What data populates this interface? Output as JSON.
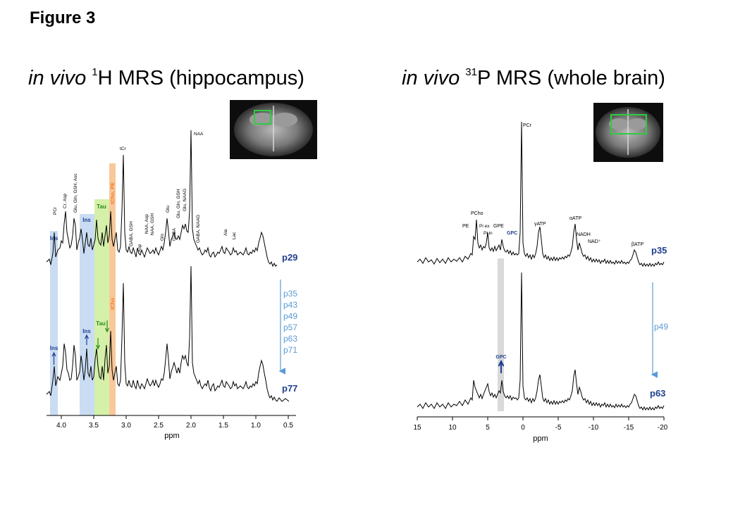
{
  "figure_label": "Figure 3",
  "left_panel": {
    "title_italic": "in vivo",
    "title_sup": "1",
    "title_rest": "H MRS (hippocampus)",
    "xlabel": "ppm",
    "xticks": [
      "4.0",
      "3.5",
      "3.0",
      "2.5",
      "2.0",
      "1.5",
      "1.0",
      "0.5"
    ],
    "peaks": [
      "PCr",
      "Cr, Asp",
      "Glu, Gln, GSH, Asc",
      "tCr",
      "NAA",
      "Glu",
      "Glu, Gln, GSH",
      "Glu, NAAG",
      "GABA, NAAG",
      "GABA, GSH",
      "Asp",
      "NAA, Asp",
      "NAA, GSH",
      "Gln",
      "GABA",
      "Ala",
      "Lac"
    ],
    "band_labels": {
      "ins": "Ins",
      "tau": "Tau",
      "tcho_pe": "tCho, PE",
      "tcho": "tCho"
    },
    "top_spectrum_label": "p29",
    "bottom_spectrum_label": "p77",
    "time_points": [
      "p35",
      "p43",
      "p49",
      "p57",
      "p63",
      "p71"
    ]
  },
  "right_panel": {
    "title_italic": "in vivo",
    "title_sup": "31",
    "title_rest": "P MRS (whole brain)",
    "xlabel": "ppm",
    "xticks": [
      "15",
      "10",
      "5",
      "0",
      "-5",
      "-10",
      "-15",
      "-20"
    ],
    "peaks": [
      "PCr",
      "PE",
      "PCho",
      "Pi ex",
      "Pi in",
      "GPE",
      "GPC",
      "γATP",
      "αATP",
      "NADH",
      "NAD⁺",
      "βATP"
    ],
    "gpc_label": "GPC",
    "top_spectrum_label": "p35",
    "bottom_spectrum_label": "p63",
    "time_points": [
      "p49"
    ]
  },
  "colors": {
    "ins_band": "#c9dcf3",
    "tau_band": "#d4f0a9",
    "tcho_band": "#f9c89a",
    "gpc_band": "#d9d9d9",
    "label_blue": "#1f3f8f",
    "arrow_blue": "#5b9bd5",
    "tcho_orange": "#ef7d28",
    "tau_green": "#2e8b1a",
    "box_green": "#2ecc40"
  }
}
